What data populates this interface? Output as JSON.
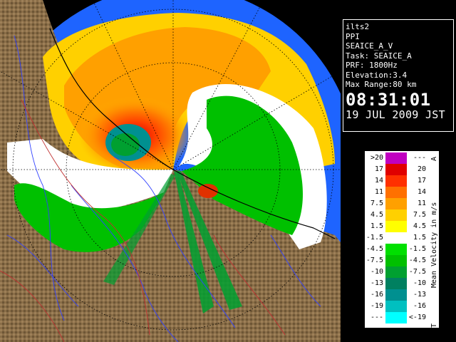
{
  "info": {
    "site": "ilts2",
    "scan": "PPI",
    "mode": "SEAICE_A_V",
    "task": "Task: SEAICE_A",
    "prf": "PRF: 1800Hz",
    "elevation": "Elevation:3.4",
    "max_range": "Max Range:80 km",
    "time": "08:31:01",
    "date": "19 JUL 2009 JST"
  },
  "legend": {
    "title": "Mean Velocity in m/s",
    "corner_top": "A",
    "corner_bottom": "T",
    "rows": [
      {
        "lo": ">20",
        "hi": "---",
        "color": "#c000c0"
      },
      {
        "lo": "17",
        "hi": "20",
        "color": "#e00000"
      },
      {
        "lo": "14",
        "hi": "17",
        "color": "#ff3000"
      },
      {
        "lo": "11",
        "hi": "14",
        "color": "#ff7000"
      },
      {
        "lo": "7.5",
        "hi": "11",
        "color": "#ffa000"
      },
      {
        "lo": "4.5",
        "hi": "7.5",
        "color": "#ffd000"
      },
      {
        "lo": "1.5",
        "hi": "4.5",
        "color": "#ffff00"
      },
      {
        "lo": "-1.5",
        "hi": "1.5",
        "color": "#ffffff"
      },
      {
        "lo": "-4.5",
        "hi": "-1.5",
        "color": "#00e000"
      },
      {
        "lo": "-7.5",
        "hi": "-4.5",
        "color": "#00c000"
      },
      {
        "lo": "-10",
        "hi": "-7.5",
        "color": "#00a030"
      },
      {
        "lo": "-13",
        "hi": "-10",
        "color": "#008060"
      },
      {
        "lo": "-16",
        "hi": "-13",
        "color": "#009090"
      },
      {
        "lo": "-19",
        "hi": "-16",
        "color": "#00c0c0"
      },
      {
        "lo": "---",
        "hi": "<-19",
        "color": "#00ffff"
      }
    ]
  },
  "colors": {
    "outer_ring": "#1e64ff",
    "land": "#8a6e48",
    "range_ring": "#000000",
    "coast": "#000000",
    "rivers": "#3040ff",
    "borders": "#c03030"
  }
}
